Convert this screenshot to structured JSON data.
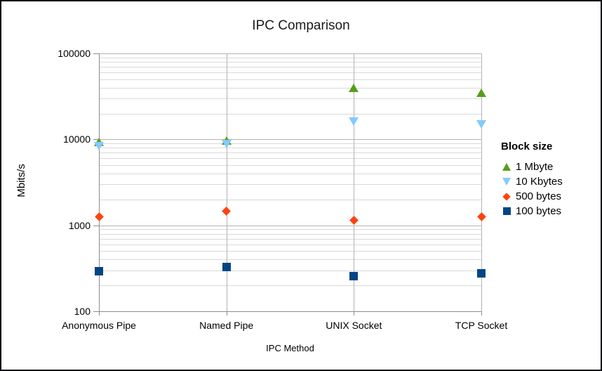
{
  "chart_data": {
    "type": "scatter",
    "title": "IPC Comparison",
    "xlabel": "IPC Method",
    "ylabel": "Mbits/s",
    "y_scale": "log",
    "ylim": [
      100,
      100000
    ],
    "y_tick_labels": [
      "100",
      "1000",
      "10000",
      "100000"
    ],
    "y_ticks": [
      100,
      1000,
      10000,
      100000
    ],
    "categories": [
      "Anonymous Pipe",
      "Named Pipe",
      "UNIX Socket",
      "TCP Socket"
    ],
    "grid": true,
    "legend_position": "right",
    "legend_title": "Block size",
    "series": [
      {
        "name": "1 Mbyte",
        "marker": "triangle-up",
        "color": "#579D1C",
        "values": [
          9300,
          9700,
          40000,
          35000
        ]
      },
      {
        "name": "10 Kbytes",
        "marker": "triangle-down",
        "color": "#83CAFF",
        "values": [
          8300,
          8800,
          16000,
          15000
        ]
      },
      {
        "name": "500 bytes",
        "marker": "diamond",
        "color": "#FF420E",
        "values": [
          1250,
          1450,
          1150,
          1250
        ]
      },
      {
        "name": "100 bytes",
        "marker": "square",
        "color": "#004586",
        "values": [
          290,
          330,
          255,
          275
        ]
      }
    ]
  },
  "colors": {
    "grid_minor": "#d9d9d9",
    "grid_major": "#b3b3b3",
    "axis": "#8c8c8c",
    "text": "#000000",
    "page_border": "#0a0a14",
    "background": "#ffffff"
  }
}
